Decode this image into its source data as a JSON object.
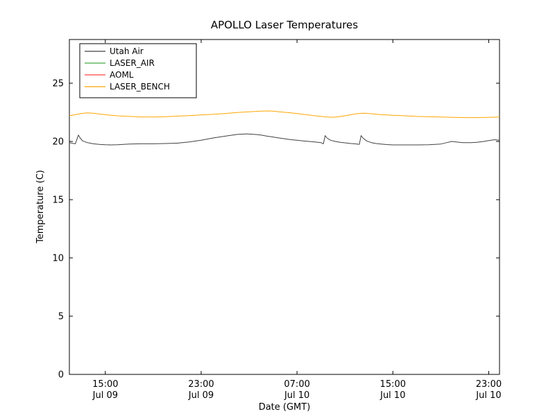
{
  "page": {
    "background": "#ffffff"
  },
  "chart_data": {
    "type": "line",
    "title": "APOLLO Laser Temperatures",
    "xlabel": "Date (GMT)",
    "ylabel": "Temperature (C)",
    "x_axis_unit": "hours since Jul 09 12:00 GMT",
    "xlim": [
      0,
      35.9
    ],
    "ylim": [
      0,
      28.75
    ],
    "grid": false,
    "legend_position": "upper-left",
    "yticks": [
      0,
      5,
      10,
      15,
      20,
      25
    ],
    "xticks": [
      {
        "pos": 3,
        "time": "15:00",
        "date": "Jul 09"
      },
      {
        "pos": 11,
        "time": "23:00",
        "date": "Jul 09"
      },
      {
        "pos": 19,
        "time": "07:00",
        "date": "Jul 10"
      },
      {
        "pos": 27,
        "time": "15:00",
        "date": "Jul 10"
      },
      {
        "pos": 35,
        "time": "23:00",
        "date": "Jul 10"
      }
    ],
    "series": [
      {
        "name": "Utah Air",
        "color": "#404040",
        "points": [
          [
            0,
            19.9
          ],
          [
            0.2,
            19.85
          ],
          [
            0.5,
            19.8
          ],
          [
            0.75,
            20.55
          ],
          [
            0.9,
            20.3
          ],
          [
            1.1,
            20.05
          ],
          [
            1.5,
            19.9
          ],
          [
            2,
            19.8
          ],
          [
            2.5,
            19.75
          ],
          [
            3,
            19.72
          ],
          [
            3.5,
            19.7
          ],
          [
            4,
            19.72
          ],
          [
            4.5,
            19.75
          ],
          [
            5,
            19.78
          ],
          [
            6,
            19.8
          ],
          [
            7,
            19.8
          ],
          [
            8,
            19.82
          ],
          [
            9,
            19.85
          ],
          [
            10,
            19.95
          ],
          [
            11,
            20.1
          ],
          [
            12,
            20.3
          ],
          [
            13,
            20.45
          ],
          [
            14,
            20.6
          ],
          [
            14.8,
            20.65
          ],
          [
            15.5,
            20.6
          ],
          [
            16,
            20.55
          ],
          [
            16.5,
            20.45
          ],
          [
            17,
            20.38
          ],
          [
            17.5,
            20.3
          ],
          [
            18,
            20.22
          ],
          [
            18.5,
            20.15
          ],
          [
            19,
            20.1
          ],
          [
            19.5,
            20.05
          ],
          [
            20,
            20.0
          ],
          [
            20.5,
            19.95
          ],
          [
            21,
            19.9
          ],
          [
            21.2,
            19.8
          ],
          [
            21.35,
            20.5
          ],
          [
            21.5,
            20.3
          ],
          [
            21.8,
            20.1
          ],
          [
            22.2,
            20.0
          ],
          [
            22.6,
            19.92
          ],
          [
            23,
            19.88
          ],
          [
            23.5,
            19.82
          ],
          [
            24,
            19.78
          ],
          [
            24.2,
            19.75
          ],
          [
            24.35,
            20.5
          ],
          [
            24.5,
            20.3
          ],
          [
            24.8,
            20.05
          ],
          [
            25.2,
            19.9
          ],
          [
            25.6,
            19.82
          ],
          [
            26,
            19.78
          ],
          [
            26.5,
            19.73
          ],
          [
            27,
            19.7
          ],
          [
            28,
            19.7
          ],
          [
            29,
            19.7
          ],
          [
            30,
            19.72
          ],
          [
            31,
            19.78
          ],
          [
            31.5,
            19.9
          ],
          [
            31.9,
            20.0
          ],
          [
            32.3,
            19.95
          ],
          [
            32.8,
            19.9
          ],
          [
            33.5,
            19.9
          ],
          [
            34,
            19.92
          ],
          [
            34.5,
            19.98
          ],
          [
            35,
            20.08
          ],
          [
            35.5,
            20.15
          ],
          [
            35.9,
            20.1
          ]
        ]
      },
      {
        "name": "LASER_AIR",
        "color": "#44aa44",
        "points": []
      },
      {
        "name": "AOML",
        "color": "#ff4444",
        "points": []
      },
      {
        "name": "LASER_BENCH",
        "color": "#ffa500",
        "points": [
          [
            0,
            22.2
          ],
          [
            0.5,
            22.3
          ],
          [
            1,
            22.4
          ],
          [
            1.5,
            22.45
          ],
          [
            2,
            22.42
          ],
          [
            2.5,
            22.35
          ],
          [
            3,
            22.3
          ],
          [
            3.5,
            22.25
          ],
          [
            4,
            22.2
          ],
          [
            4.5,
            22.17
          ],
          [
            5,
            22.15
          ],
          [
            5.5,
            22.13
          ],
          [
            6,
            22.1
          ],
          [
            7,
            22.1
          ],
          [
            8,
            22.12
          ],
          [
            9,
            22.17
          ],
          [
            10,
            22.22
          ],
          [
            11,
            22.28
          ],
          [
            12,
            22.33
          ],
          [
            13,
            22.4
          ],
          [
            14,
            22.48
          ],
          [
            15,
            22.55
          ],
          [
            16,
            22.6
          ],
          [
            16.5,
            22.62
          ],
          [
            17,
            22.6
          ],
          [
            17.5,
            22.55
          ],
          [
            18,
            22.5
          ],
          [
            18.5,
            22.45
          ],
          [
            19,
            22.4
          ],
          [
            19.5,
            22.33
          ],
          [
            20,
            22.27
          ],
          [
            20.5,
            22.2
          ],
          [
            21,
            22.15
          ],
          [
            21.5,
            22.1
          ],
          [
            22,
            22.08
          ],
          [
            22.5,
            22.12
          ],
          [
            23,
            22.2
          ],
          [
            23.5,
            22.3
          ],
          [
            24,
            22.38
          ],
          [
            24.5,
            22.43
          ],
          [
            25,
            22.4
          ],
          [
            25.5,
            22.35
          ],
          [
            26,
            22.3
          ],
          [
            27,
            22.25
          ],
          [
            28,
            22.2
          ],
          [
            29,
            22.15
          ],
          [
            30,
            22.12
          ],
          [
            31,
            22.1
          ],
          [
            32,
            22.07
          ],
          [
            33,
            22.05
          ],
          [
            34,
            22.05
          ],
          [
            35,
            22.07
          ],
          [
            35.9,
            22.1
          ]
        ]
      }
    ]
  }
}
